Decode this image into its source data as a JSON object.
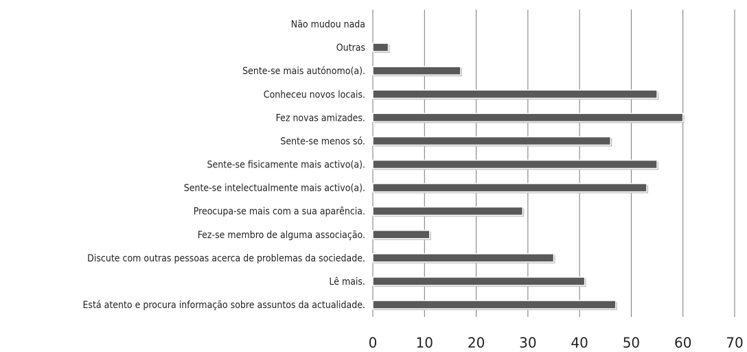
{
  "chart_data": {
    "type": "barh",
    "categories": [
      "Não mudou nada",
      "Outras",
      "Sente-se mais autónomo(a).",
      "Conheceu novos locais.",
      "Fez novas amizades.",
      "Sente-se menos só.",
      "Sente-se fisicamente mais activo(a).",
      "Sente-se intelectualmente mais activo(a).",
      "Preocupa-se mais com a sua aparência.",
      "Fez-se membro de alguma associação.",
      "Discute com outras pessoas acerca de problemas da sociedade.",
      "Lê mais.",
      "Está atento e procura informação sobre assuntos da actualidade."
    ],
    "values": [
      0,
      3,
      17,
      55,
      60,
      46,
      55,
      53,
      29,
      11,
      35,
      41,
      47
    ],
    "color": "#595959",
    "xlim": [
      0,
      70
    ],
    "xticks": [
      0,
      10,
      20,
      30,
      40,
      50,
      60,
      70
    ],
    "grid": true
  }
}
